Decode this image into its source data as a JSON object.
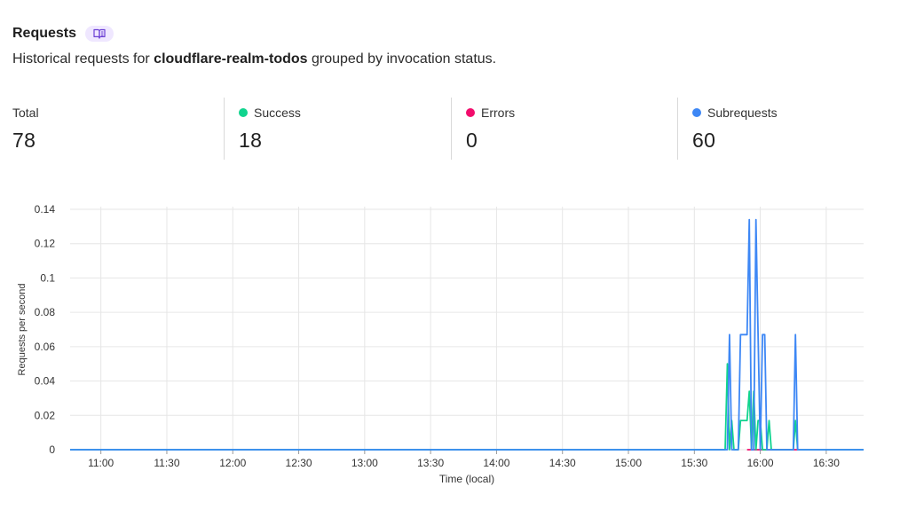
{
  "header": {
    "title": "Requests",
    "subtitle_prefix": "Historical requests for ",
    "subtitle_worker": "cloudflare-realm-todos",
    "subtitle_suffix": " grouped by invocation status.",
    "badge_icon": "book-open-icon"
  },
  "stats": [
    {
      "label": "Total",
      "value": "78"
    },
    {
      "label": "Success",
      "value": "18",
      "color": "#10d48e"
    },
    {
      "label": "Errors",
      "value": "0",
      "color": "#f20c6c"
    },
    {
      "label": "Subrequests",
      "value": "60",
      "color": "#3d87f5"
    }
  ],
  "chart_data": {
    "type": "line",
    "xlabel": "Time (local)",
    "ylabel": "Requests per second",
    "x_ticks": [
      "11:00",
      "11:30",
      "12:00",
      "12:30",
      "13:00",
      "13:30",
      "14:00",
      "14:30",
      "15:00",
      "15:30",
      "16:00",
      "16:30"
    ],
    "y_ticks": [
      "0",
      "0.02",
      "0.04",
      "0.06",
      "0.08",
      "0.1",
      "0.12",
      "0.14"
    ],
    "ylim": [
      0,
      0.14
    ],
    "xlim": [
      "10:46",
      "16:47"
    ],
    "grid": true,
    "series": [
      {
        "name": "Errors",
        "color": "#f20c6c",
        "points": [
          [
            "15:54",
            0
          ],
          [
            "15:56",
            0
          ],
          [
            "15:57",
            0
          ],
          [
            "15:58",
            0
          ],
          [
            "15:59",
            0
          ],
          [
            "16:01",
            0
          ],
          [
            "16:02",
            0
          ],
          [
            "16:03",
            0
          ],
          [
            "16:04",
            0
          ],
          [
            "16:05",
            0
          ],
          [
            "16:16",
            0
          ],
          [
            "16:17",
            0
          ]
        ]
      },
      {
        "name": "Success",
        "color": "#10d48e",
        "points": [
          [
            "10:46",
            0
          ],
          [
            "15:44",
            0
          ],
          [
            "15:45",
            0.05
          ],
          [
            "15:46",
            0
          ],
          [
            "15:47",
            0.017
          ],
          [
            "15:48",
            0
          ],
          [
            "15:50",
            0
          ],
          [
            "15:51",
            0.017
          ],
          [
            "15:54",
            0.017
          ],
          [
            "15:55",
            0.034
          ],
          [
            "15:56",
            0
          ],
          [
            "15:57",
            0.034
          ],
          [
            "15:58",
            0
          ],
          [
            "15:59",
            0.017
          ],
          [
            "16:00",
            0.017
          ],
          [
            "16:01",
            0
          ],
          [
            "16:02",
            0
          ],
          [
            "16:03",
            0
          ],
          [
            "16:04",
            0.017
          ],
          [
            "16:05",
            0
          ],
          [
            "16:15",
            0
          ],
          [
            "16:16",
            0.017
          ],
          [
            "16:17",
            0
          ],
          [
            "16:47",
            0
          ]
        ]
      },
      {
        "name": "Subrequests",
        "color": "#3d87f5",
        "points": [
          [
            "10:46",
            0
          ],
          [
            "15:45",
            0
          ],
          [
            "15:46",
            0.067
          ],
          [
            "15:47",
            0
          ],
          [
            "15:50",
            0
          ],
          [
            "15:51",
            0.067
          ],
          [
            "15:54",
            0.067
          ],
          [
            "15:55",
            0.134
          ],
          [
            "15:56",
            0
          ],
          [
            "15:57",
            0
          ],
          [
            "15:58",
            0.134
          ],
          [
            "15:59",
            0.067
          ],
          [
            "16:00",
            0
          ],
          [
            "16:01",
            0.067
          ],
          [
            "16:02",
            0.067
          ],
          [
            "16:03",
            0
          ],
          [
            "16:15",
            0
          ],
          [
            "16:16",
            0.067
          ],
          [
            "16:17",
            0
          ],
          [
            "16:47",
            0
          ]
        ]
      }
    ]
  }
}
